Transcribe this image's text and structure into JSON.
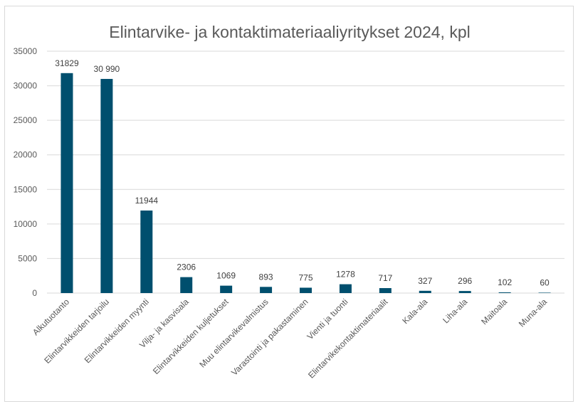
{
  "chart_data": {
    "type": "bar",
    "title": "Elintarvike- ja kontaktimateriaaliyritykset 2024, kpl",
    "xlabel": "",
    "ylabel": "",
    "ylim": [
      0,
      35000
    ],
    "yticks": [
      0,
      5000,
      10000,
      15000,
      20000,
      25000,
      30000,
      35000
    ],
    "grid": true,
    "legend": "none",
    "bar_color": "#004F6E",
    "categories": [
      "Alkutuotanto",
      "Elintarvikkeiden tarjoilu",
      "Elintarvikkeiden myynti",
      "Vilja- ja kasvisala",
      "Elintarvikkeiden kuljetukset",
      "Muu elintarvikevalmistus",
      "Varastointi ja pakastaminen",
      "Vienti ja tuonti",
      "Elintarvikekontaktimateriaalit",
      "Kala-ala",
      "Liha-ala",
      "Maitoala",
      "Muna-ala"
    ],
    "values": [
      31829,
      30990,
      11944,
      2306,
      1069,
      893,
      775,
      1278,
      717,
      327,
      296,
      102,
      60
    ],
    "data_labels": [
      "31829",
      "30 990",
      "11944",
      "2306",
      "1069",
      "893",
      "775",
      "1278",
      "717",
      "327",
      "296",
      "102",
      "60"
    ]
  }
}
